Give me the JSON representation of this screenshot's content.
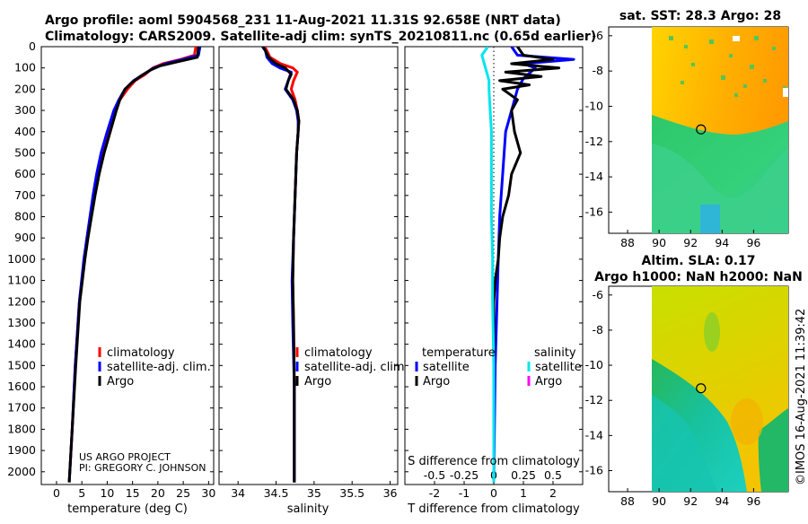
{
  "title": {
    "line1": "Argo profile: aoml 5904568_231 11-Aug-2021 11.31S 92.658E (NRT data)",
    "line2": "Climatology: CARS2009. Satellite-adj clim: synTS_20210811.nc (0.65d earlier)"
  },
  "colors": {
    "climatology": "#ff0000",
    "satellite": "#0000ff",
    "argo": "#000000",
    "t_sat_diff": "#00e5ee",
    "s_sat_diff": "#00e5ee",
    "s_argo_diff": "#ff00ff"
  },
  "legend": {
    "climatology": "climatology",
    "satellite_adj": "satellite-adj. clim.",
    "argo": "Argo",
    "temperature_header": "temperature",
    "salinity_header": "salinity",
    "satellite": "satellite"
  },
  "project": {
    "line1": "US ARGO PROJECT",
    "line2": "PI: GREGORY C. JOHNSON"
  },
  "credit": "©IMOS 16-Aug-2021 11:39:42",
  "chart_data": [
    {
      "type": "line",
      "panel": "temperature",
      "xlabel": "temperature (deg C)",
      "xlim": [
        -3,
        31
      ],
      "ylim": [
        2060,
        0
      ],
      "xticks": [
        0,
        5,
        10,
        15,
        20,
        25,
        30
      ],
      "yticks": [
        0,
        100,
        200,
        300,
        400,
        500,
        600,
        700,
        800,
        900,
        1000,
        1100,
        1200,
        1300,
        1400,
        1500,
        1600,
        1700,
        1800,
        1900,
        2000
      ],
      "series": [
        {
          "name": "climatology",
          "depth": [
            0,
            40,
            60,
            80,
            100,
            130,
            160,
            200,
            250,
            300,
            400,
            500,
            600,
            700,
            800,
            900,
            1000,
            1200,
            1500,
            1800,
            2050
          ],
          "values": [
            27.5,
            27.2,
            24.5,
            21.0,
            19.0,
            17.5,
            15.5,
            14.0,
            12.5,
            11.5,
            10.2,
            9.0,
            8.0,
            7.3,
            6.7,
            6.0,
            5.5,
            4.5,
            3.7,
            3.1,
            2.5
          ]
        },
        {
          "name": "satellite-adj. clim.",
          "depth": [
            0,
            40,
            60,
            80,
            100,
            130,
            160,
            200,
            250,
            300,
            400,
            500,
            600,
            700,
            800,
            900,
            1000,
            1200,
            1500,
            1800,
            2050
          ],
          "values": [
            28.3,
            28.0,
            25.0,
            21.5,
            19.2,
            17.2,
            15.2,
            13.5,
            12.3,
            11.3,
            10.0,
            8.8,
            7.9,
            7.2,
            6.6,
            6.0,
            5.4,
            4.5,
            3.7,
            3.1,
            2.5
          ]
        },
        {
          "name": "Argo",
          "depth": [
            0,
            50,
            70,
            90,
            110,
            140,
            170,
            200,
            250,
            300,
            400,
            500,
            600,
            700,
            800,
            900,
            1000,
            1200,
            1500,
            1800,
            2050
          ],
          "values": [
            28.0,
            27.8,
            24.0,
            20.5,
            18.5,
            16.5,
            14.8,
            13.5,
            12.5,
            11.8,
            10.6,
            9.4,
            8.4,
            7.6,
            6.9,
            6.2,
            5.6,
            4.6,
            3.8,
            3.1,
            2.5
          ]
        }
      ]
    },
    {
      "type": "line",
      "panel": "salinity",
      "xlabel": "salinity",
      "xlim": [
        33.75,
        36.1
      ],
      "ylim": [
        2060,
        0
      ],
      "xticks": [
        34,
        34.5,
        35,
        35.5,
        36
      ],
      "series": [
        {
          "name": "climatology",
          "depth": [
            0,
            20,
            50,
            80,
            100,
            120,
            160,
            200,
            250,
            300,
            350,
            400,
            500,
            700,
            900,
            1100,
            1300,
            1600,
            2050
          ],
          "values": [
            34.35,
            34.38,
            34.42,
            34.56,
            34.72,
            34.78,
            34.73,
            34.7,
            34.75,
            34.78,
            34.8,
            34.79,
            34.77,
            34.75,
            34.73,
            34.72,
            34.73,
            34.74,
            34.74
          ]
        },
        {
          "name": "satellite-adj. clim.",
          "depth": [
            0,
            20,
            50,
            80,
            100,
            120,
            160,
            200,
            250,
            300,
            350,
            400,
            500,
            700,
            900,
            1100,
            1300,
            1600,
            2050
          ],
          "values": [
            34.32,
            34.36,
            34.38,
            34.45,
            34.55,
            34.7,
            34.66,
            34.62,
            34.72,
            34.77,
            34.79,
            34.79,
            34.77,
            34.75,
            34.73,
            34.71,
            34.72,
            34.74,
            34.74
          ]
        },
        {
          "name": "Argo",
          "depth": [
            0,
            20,
            50,
            80,
            100,
            130,
            160,
            200,
            250,
            300,
            350,
            400,
            500,
            700,
            900,
            1100,
            1300,
            1600,
            2050
          ],
          "values": [
            34.33,
            34.36,
            34.4,
            34.5,
            34.62,
            34.7,
            34.66,
            34.63,
            34.73,
            34.78,
            34.8,
            34.79,
            34.77,
            34.75,
            34.73,
            34.72,
            34.73,
            34.74,
            34.74
          ]
        }
      ]
    },
    {
      "type": "line",
      "panel": "difference",
      "xlabel": "T difference from climatology",
      "xlabel_top": "S difference from climatology",
      "xlim": [
        -3,
        3
      ],
      "ylim": [
        2060,
        0
      ],
      "xticks": [
        -2,
        -1,
        0,
        1,
        2
      ],
      "xticks_s": [
        -0.5,
        -0.25,
        0,
        0.25,
        0.5
      ],
      "series": [
        {
          "name": "T satellite",
          "depth": [
            0,
            40,
            60,
            80,
            100,
            150,
            200,
            300,
            400,
            600,
            800,
            1000,
            1500,
            2050
          ],
          "values": [
            0.6,
            0.8,
            2.7,
            1.0,
            1.4,
            1.0,
            0.8,
            0.6,
            0.4,
            0.3,
            0.2,
            0.15,
            0.05,
            0.0
          ]
        },
        {
          "name": "T Argo",
          "depth": [
            0,
            40,
            60,
            80,
            100,
            120,
            140,
            160,
            180,
            200,
            250,
            300,
            400,
            500,
            600,
            700,
            800,
            900,
            1000,
            1100,
            1200,
            1500,
            1800,
            2050
          ],
          "values": [
            0.8,
            1.0,
            2.0,
            0.6,
            2.2,
            0.4,
            1.6,
            0.2,
            1.2,
            0.3,
            0.8,
            0.6,
            0.7,
            0.9,
            0.6,
            0.5,
            0.3,
            0.2,
            0.15,
            0.05,
            0.0,
            0.0,
            0.0,
            0.0
          ]
        },
        {
          "name": "S satellite",
          "depth": [
            0,
            40,
            80,
            120,
            160,
            200,
            300,
            400,
            600,
            800,
            1000,
            1200,
            1500,
            1800,
            2050
          ],
          "values": [
            -0.05,
            -0.1,
            -0.08,
            -0.06,
            -0.04,
            -0.04,
            -0.03,
            -0.02,
            -0.02,
            -0.02,
            -0.01,
            -0.01,
            0.0,
            0.0,
            0.0
          ]
        }
      ]
    },
    {
      "type": "heatmap",
      "panel": "sat_sst",
      "title": "sat. SST: 28.3 Argo: 28",
      "xticks": [
        88,
        90,
        92,
        94,
        96
      ],
      "yticks": [
        -6,
        -8,
        -10,
        -12,
        -14,
        -16
      ],
      "xlim": [
        86.8,
        98.2
      ],
      "ylim": [
        -17.2,
        -5.5
      ],
      "argo_position": {
        "lon": 92.658,
        "lat": -11.31
      }
    },
    {
      "type": "heatmap",
      "panel": "altim_sla",
      "title": "Altim. SLA: 0.17",
      "subtitle": "Argo h1000: NaN h2000: NaN",
      "xticks": [
        88,
        90,
        92,
        94,
        96
      ],
      "yticks": [
        -6,
        -8,
        -10,
        -12,
        -14,
        -16
      ],
      "xlim": [
        86.8,
        98.2
      ],
      "ylim": [
        -17.2,
        -5.5
      ],
      "argo_position": {
        "lon": 92.658,
        "lat": -11.31
      }
    }
  ]
}
